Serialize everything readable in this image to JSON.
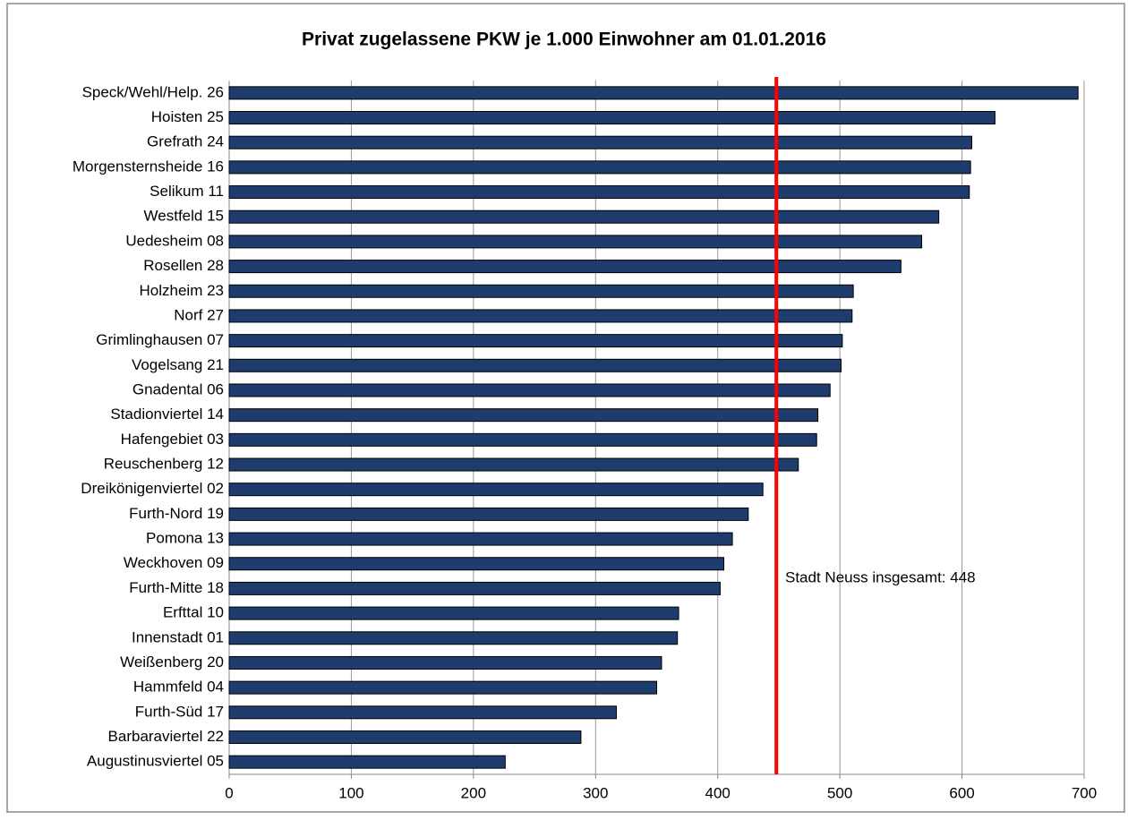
{
  "chart_data": {
    "type": "hbar",
    "title": "Privat zugelassene PKW je 1.000 Einwohner am 01.01.2016",
    "categories": [
      "Speck/Wehl/Help. 26",
      "Hoisten 25",
      "Grefrath 24",
      "Morgensternsheide 16",
      "Selikum 11",
      "Westfeld 15",
      "Uedesheim 08",
      "Rosellen 28",
      "Holzheim 23",
      "Norf 27",
      "Grimlinghausen 07",
      "Vogelsang 21",
      "Gnadental 06",
      "Stadionviertel 14",
      "Hafengebiet 03",
      "Reuschenberg 12",
      "Dreikönigenviertel 02",
      "Furth-Nord 19",
      "Pomona 13",
      "Weckhoven 09",
      "Furth-Mitte 18",
      "Erfttal 10",
      "Innenstadt 01",
      "Weißenberg 20",
      "Hammfeld 04",
      "Furth-Süd 17",
      "Barbaraviertel 22",
      "Augustinusviertel 05"
    ],
    "values": [
      695,
      627,
      608,
      607,
      606,
      581,
      567,
      550,
      511,
      510,
      502,
      501,
      492,
      482,
      481,
      466,
      437,
      425,
      412,
      405,
      402,
      368,
      367,
      354,
      350,
      317,
      288,
      226
    ],
    "color": "#1f3c6e",
    "xlim": [
      0,
      700
    ],
    "xticks": [
      0,
      100,
      200,
      300,
      400,
      500,
      600,
      700
    ],
    "grid": true,
    "reference": {
      "value": 448,
      "label": "Stadt Neuss insgesamt:  448",
      "color": "#ff0000"
    }
  }
}
